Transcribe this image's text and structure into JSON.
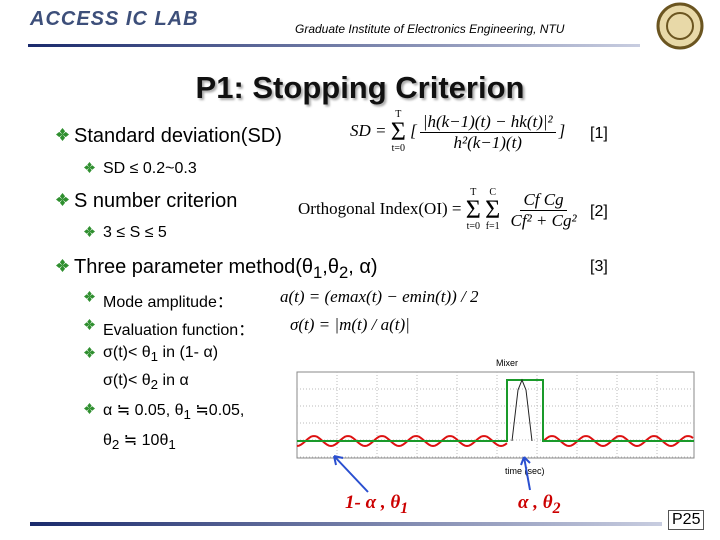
{
  "header": {
    "lab": "ACCESS IC LAB",
    "institute": "Graduate Institute of Electronics Engineering, NTU"
  },
  "title": "P1: Stopping Criterion",
  "bullets": [
    {
      "text": "Standard deviation(SD)",
      "ref": "[1]",
      "formula": {
        "lhs": "SD =",
        "sigma": "Σ",
        "upper": "T",
        "lower": "t=0",
        "numerator": "|h(k−1)(t) − hk(t)|²",
        "denominator": "h²(k−1)(t)"
      },
      "sub_items": [
        "SD ≤ 0.2~0.3"
      ]
    },
    {
      "text": "S number criterion",
      "ref": "[2]",
      "formula": {
        "lhs": "Orthogonal Index(OI) =",
        "sigma": "Σ",
        "upper": "T",
        "lower": "t=0",
        "sigma2": "Σ",
        "upper2": "C",
        "lower2": "f=1",
        "numerator": "Cf Cg",
        "denominator": "Cf² + Cg²"
      },
      "sub_items": [
        "3 ≤ S ≤ 5"
      ]
    },
    {
      "text": [
        "Three parameter method(θ",
        "1",
        ",θ",
        "2",
        ", α)"
      ],
      "ref": "[3]",
      "sub_items": [
        {
          "text": "Mode amplitude：",
          "formula": "a(t) = (emax(t) − emin(t)) / 2"
        },
        {
          "text": "Evaluation function：",
          "formula": "σ(t) = |m(t) / a(t)|"
        },
        {
          "lines": [
            [
              "σ(t)< θ",
              "1",
              " in (1- α)"
            ],
            [
              "σ(t)< θ",
              "2",
              " in α"
            ]
          ]
        },
        {
          "lines": [
            [
              "α ≒ 0.05, θ",
              "1",
              " ≒0.05,"
            ],
            [
              "θ",
              "2",
              " ≒ 10θ",
              "1"
            ]
          ]
        }
      ]
    }
  ],
  "figure": {
    "title": "Mixer",
    "xlabel": "time (sec)",
    "annotations": [
      [
        "1- α , θ",
        "1"
      ],
      [
        "α , θ",
        "2"
      ]
    ]
  },
  "page": "P25"
}
